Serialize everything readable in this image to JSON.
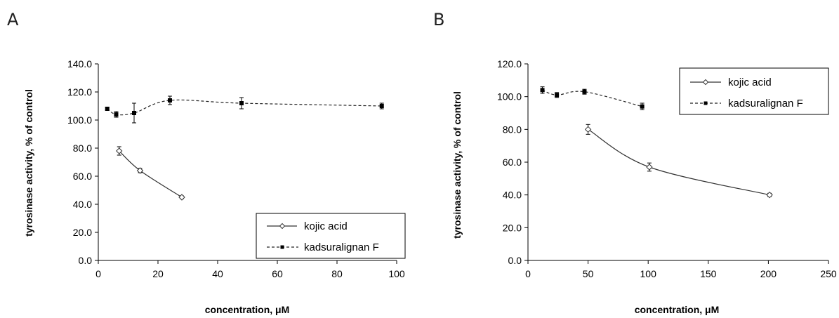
{
  "figure": {
    "panels": [
      "A",
      "B"
    ]
  },
  "chart_data": [
    {
      "panel": "A",
      "type": "line",
      "xlabel": "concentration,  μM",
      "ylabel": "tyrosinase activity,  % of control",
      "xlim": [
        0,
        100
      ],
      "ylim": [
        0,
        140
      ],
      "xticks": [
        "0",
        "20",
        "40",
        "60",
        "80",
        "100"
      ],
      "xtick_values": [
        0,
        20,
        40,
        60,
        80,
        100
      ],
      "yticks": [
        "0.0",
        "20.0",
        "40.0",
        "60.0",
        "80.0",
        "100.0",
        "120.0",
        "140.0"
      ],
      "ytick_values": [
        0,
        20,
        40,
        60,
        80,
        100,
        120,
        140
      ],
      "grid": false,
      "legend_position": "bottom-right",
      "series": [
        {
          "name": "kojic acid",
          "marker": "open-diamond",
          "line": "solid",
          "x": [
            7,
            14,
            28
          ],
          "y": [
            78,
            64,
            45
          ],
          "err": [
            3,
            1.5,
            1
          ]
        },
        {
          "name": "kadsuralignan F",
          "marker": "filled-square",
          "line": "dashed",
          "x": [
            3,
            6,
            12,
            24,
            48,
            95
          ],
          "y": [
            108,
            104,
            105,
            114,
            112,
            110
          ],
          "err": [
            1,
            2,
            7,
            3,
            4,
            2
          ]
        }
      ]
    },
    {
      "panel": "B",
      "type": "line",
      "xlabel": "concentration,  μM",
      "ylabel": "tyrosinase activity,  % of control",
      "xlim": [
        0,
        250
      ],
      "ylim": [
        0,
        120
      ],
      "xticks": [
        "0",
        "50",
        "100",
        "150",
        "200",
        "250"
      ],
      "xtick_values": [
        0,
        50,
        100,
        150,
        200,
        250
      ],
      "yticks": [
        "0.0",
        "20.0",
        "40.0",
        "60.0",
        "80.0",
        "100.0",
        "120.0"
      ],
      "ytick_values": [
        0,
        20,
        40,
        60,
        80,
        100,
        120
      ],
      "grid": false,
      "legend_position": "top-right",
      "series": [
        {
          "name": "kojic acid",
          "marker": "open-diamond",
          "line": "solid",
          "x": [
            50,
            101,
            201
          ],
          "y": [
            80,
            57,
            40
          ],
          "err": [
            3,
            2.5,
            1
          ]
        },
        {
          "name": "kadsuralignan F",
          "marker": "filled-square",
          "line": "dashed",
          "x": [
            12,
            24,
            47,
            95
          ],
          "y": [
            104,
            101,
            103,
            94
          ],
          "err": [
            2,
            1.5,
            1.5,
            2
          ]
        }
      ]
    }
  ]
}
